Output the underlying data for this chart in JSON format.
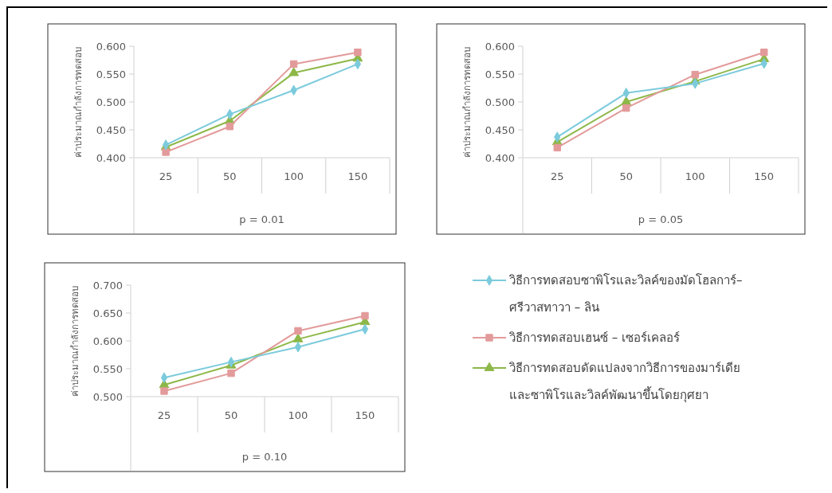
{
  "chart_data": [
    {
      "type": "line",
      "xlabel": "p = 0.01",
      "ylabel": "ค่าประมาณกำลังการทดสอบ",
      "categories": [
        "25",
        "50",
        "100",
        "150"
      ],
      "ylim": [
        0.4,
        0.6
      ],
      "yticks": [
        {
          "value": 0.4,
          "label": "0.400"
        },
        {
          "value": 0.45,
          "label": "0.450"
        },
        {
          "value": 0.5,
          "label": "0.500"
        },
        {
          "value": 0.55,
          "label": "0.550"
        },
        {
          "value": 0.6,
          "label": "0.600"
        }
      ],
      "grid": false,
      "legend": false,
      "series": [
        {
          "color": "#7ccbdc",
          "marker": "diamond",
          "values": [
            0.423,
            0.478,
            0.521,
            0.568
          ]
        },
        {
          "color": "#e39a9a",
          "marker": "square",
          "values": [
            0.41,
            0.456,
            0.568,
            0.589
          ]
        },
        {
          "color": "#8db848",
          "marker": "triangle",
          "values": [
            0.419,
            0.466,
            0.552,
            0.578
          ]
        }
      ]
    },
    {
      "type": "line",
      "xlabel": "p = 0.05",
      "ylabel": "ค่าประมาณกำลังการทดสอบ",
      "categories": [
        "25",
        "50",
        "100",
        "150"
      ],
      "ylim": [
        0.4,
        0.6
      ],
      "yticks": [
        {
          "value": 0.4,
          "label": "0.400"
        },
        {
          "value": 0.45,
          "label": "0.450"
        },
        {
          "value": 0.5,
          "label": "0.500"
        },
        {
          "value": 0.55,
          "label": "0.550"
        },
        {
          "value": 0.6,
          "label": "0.600"
        }
      ],
      "grid": false,
      "legend": false,
      "series": [
        {
          "color": "#7ccbdc",
          "marker": "diamond",
          "values": [
            0.437,
            0.516,
            0.533,
            0.569
          ]
        },
        {
          "color": "#e39a9a",
          "marker": "square",
          "values": [
            0.418,
            0.489,
            0.549,
            0.589
          ]
        },
        {
          "color": "#8db848",
          "marker": "triangle",
          "values": [
            0.428,
            0.5,
            0.537,
            0.577
          ]
        }
      ]
    },
    {
      "type": "line",
      "xlabel": "p = 0.10",
      "ylabel": "ค่าประมาณกำลังการทดสอบ",
      "categories": [
        "25",
        "50",
        "100",
        "150"
      ],
      "ylim": [
        0.5,
        0.7
      ],
      "yticks": [
        {
          "value": 0.5,
          "label": "0.500"
        },
        {
          "value": 0.55,
          "label": "0.550"
        },
        {
          "value": 0.6,
          "label": "0.600"
        },
        {
          "value": 0.65,
          "label": "0.650"
        },
        {
          "value": 0.7,
          "label": "0.700"
        }
      ],
      "grid": false,
      "legend": "right",
      "series": [
        {
          "name": "วิธีการทดสอบซาพิโรและวิลค์ของมัดโฮลการ์– ศรีวาสทาวา – ลิน",
          "color": "#7ccbdc",
          "marker": "diamond",
          "values": [
            0.534,
            0.562,
            0.589,
            0.621
          ]
        },
        {
          "name": "วิธีการทดสอบเฮนซ์ – เซอร์เคลอร์",
          "color": "#e39a9a",
          "marker": "square",
          "values": [
            0.51,
            0.542,
            0.618,
            0.645
          ]
        },
        {
          "name": "วิธีการทดสอบดัดแปลงจากวิธีการของมาร์เดีย และซาพิโรและวิลค์พัฒนาขึ้นโดยกุศยา",
          "color": "#8db848",
          "marker": "triangle",
          "values": [
            0.521,
            0.556,
            0.603,
            0.634
          ]
        }
      ]
    }
  ]
}
